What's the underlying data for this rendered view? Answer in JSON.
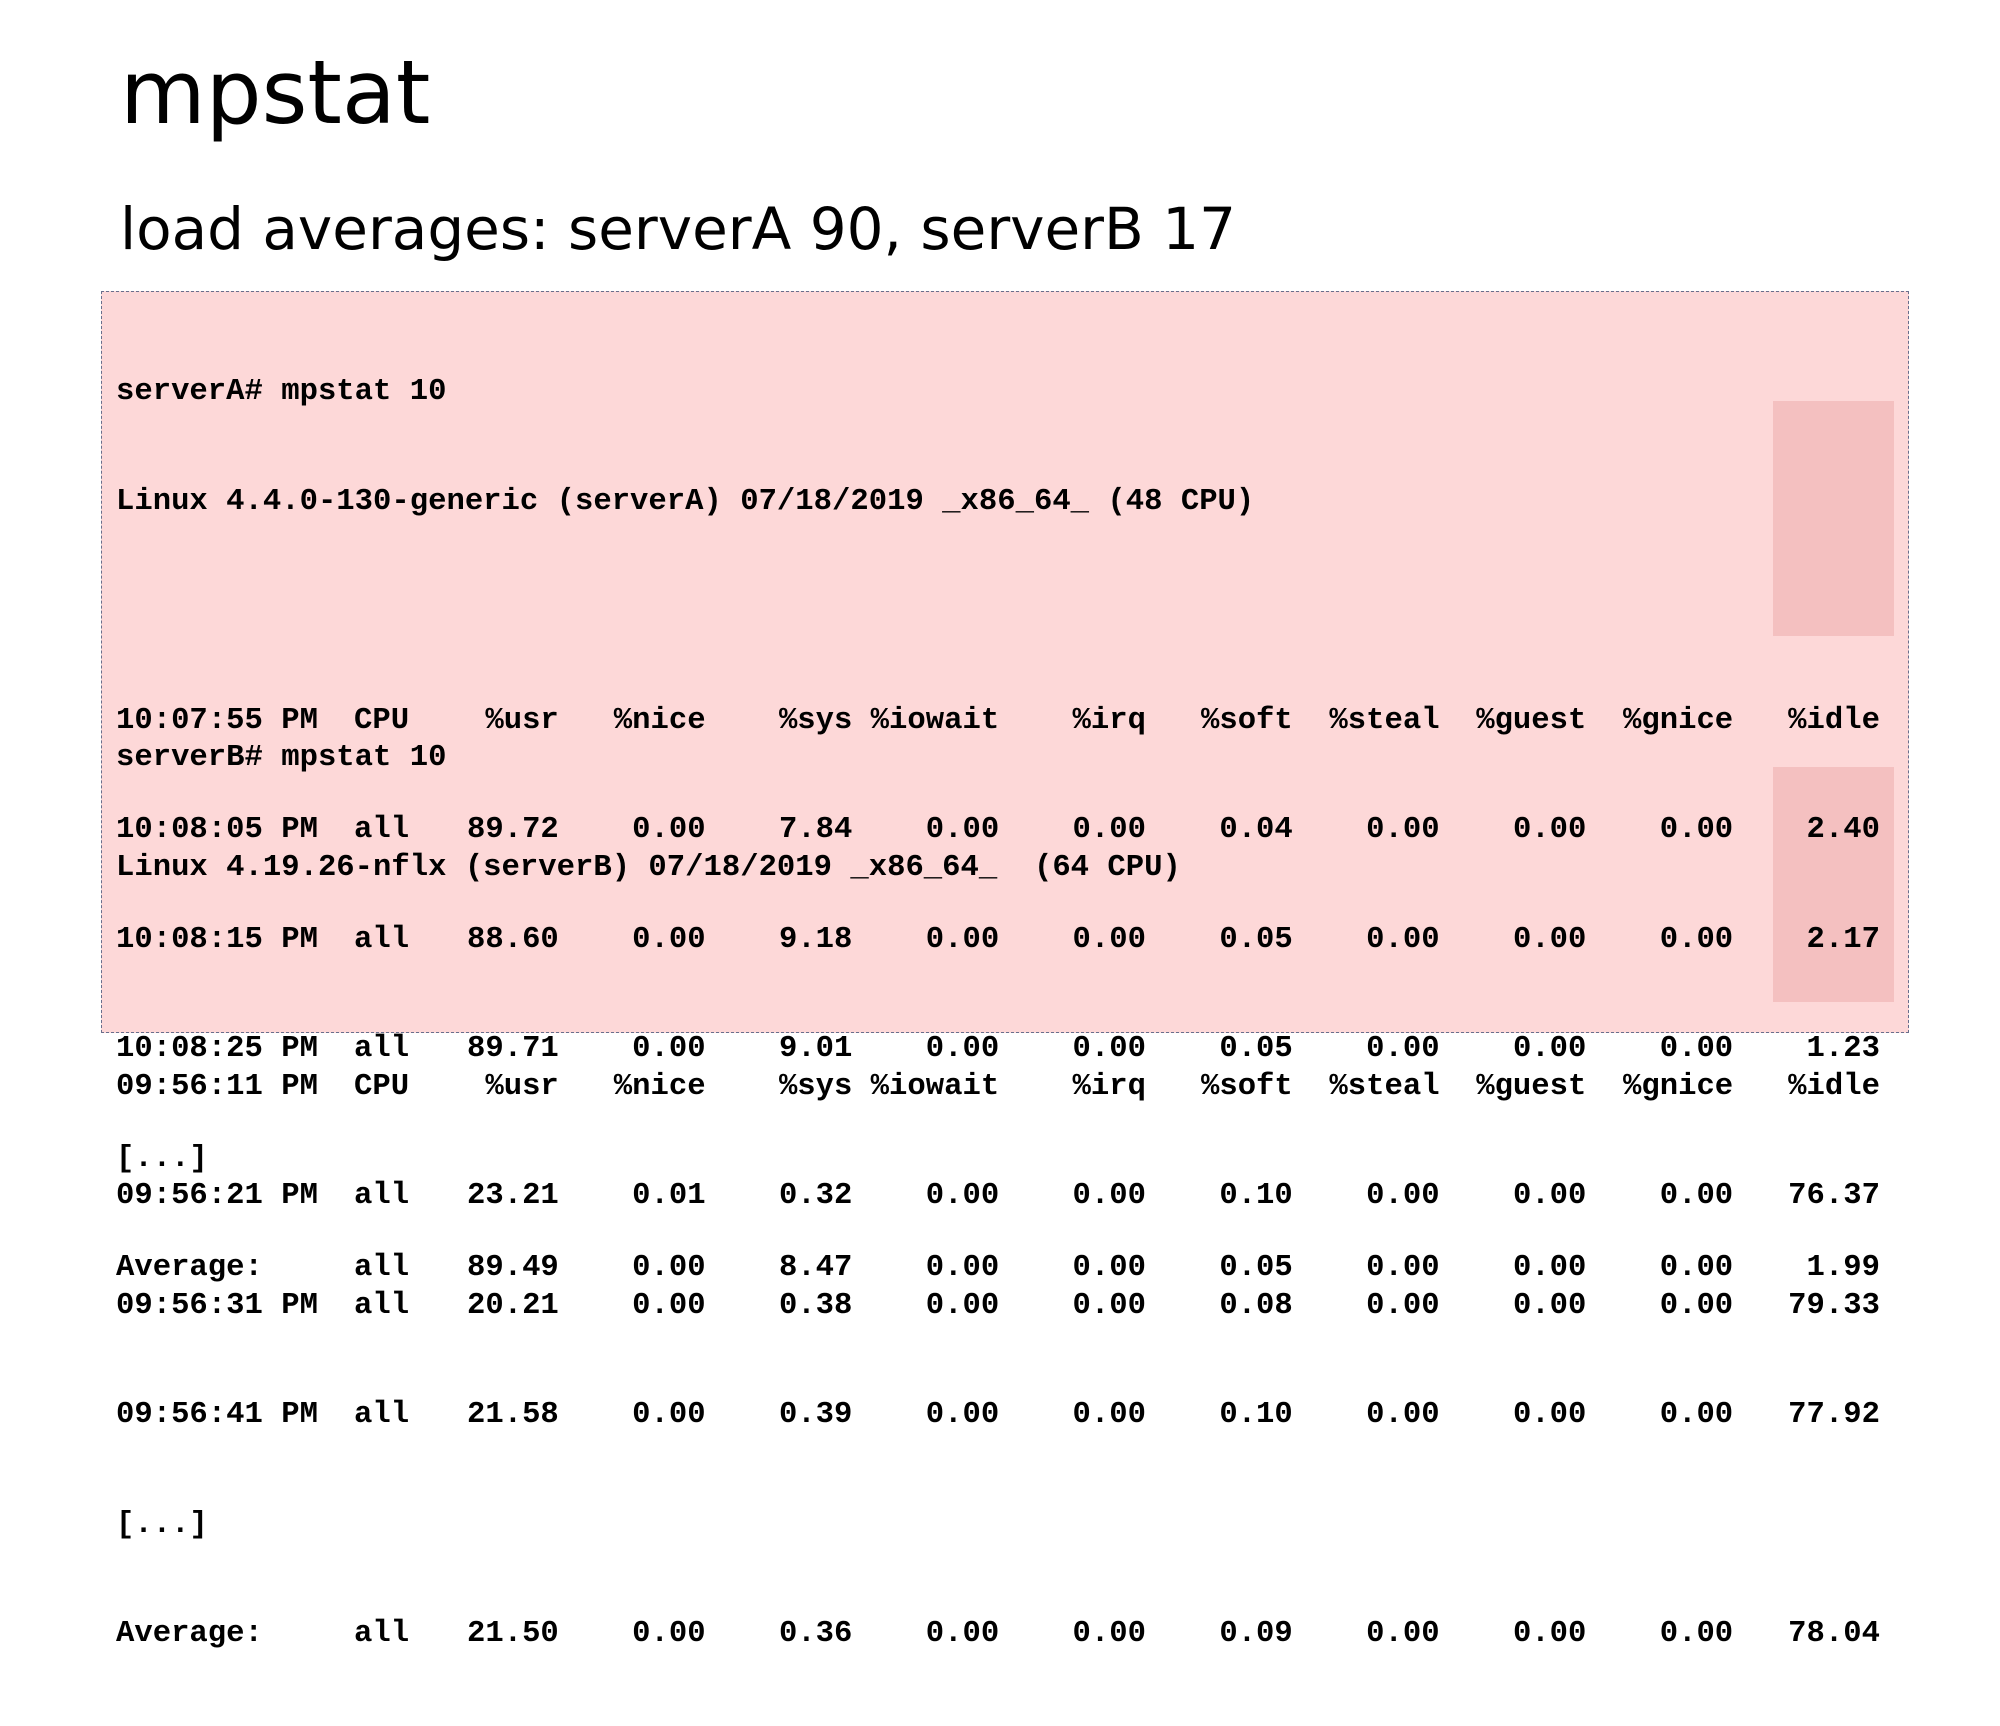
{
  "title": "mpstat",
  "subtitle": "load averages: serverA 90, serverB 17",
  "server_a": {
    "command": "serverA# mpstat 10",
    "sysinfo": "Linux 4.4.0-130-generic (serverA) 07/18/2019 _x86_64_ (48 CPU)",
    "header": [
      "10:07:55 PM",
      "CPU",
      "%usr",
      "%nice",
      "%sys",
      "%iowait",
      "%irq",
      "%soft",
      "%steal",
      "%guest",
      "%gnice",
      "%idle"
    ],
    "rows": [
      [
        "10:08:05 PM",
        "all",
        "89.72",
        "0.00",
        "7.84",
        "0.00",
        "0.00",
        "0.04",
        "0.00",
        "0.00",
        "0.00",
        "2.40"
      ],
      [
        "10:08:15 PM",
        "all",
        "88.60",
        "0.00",
        "9.18",
        "0.00",
        "0.00",
        "0.05",
        "0.00",
        "0.00",
        "0.00",
        "2.17"
      ],
      [
        "10:08:25 PM",
        "all",
        "89.71",
        "0.00",
        "9.01",
        "0.00",
        "0.00",
        "0.05",
        "0.00",
        "0.00",
        "0.00",
        "1.23"
      ]
    ],
    "ellipsis": "[...]",
    "average": [
      "Average:",
      "all",
      "89.49",
      "0.00",
      "8.47",
      "0.00",
      "0.00",
      "0.05",
      "0.00",
      "0.00",
      "0.00",
      "1.99"
    ]
  },
  "server_b": {
    "command": "serverB# mpstat 10",
    "sysinfo": "Linux 4.19.26-nflx (serverB) 07/18/2019 _x86_64_  (64 CPU)",
    "header": [
      "09:56:11 PM",
      "CPU",
      "%usr",
      "%nice",
      "%sys",
      "%iowait",
      "%irq",
      "%soft",
      "%steal",
      "%guest",
      "%gnice",
      "%idle"
    ],
    "rows": [
      [
        "09:56:21 PM",
        "all",
        "23.21",
        "0.01",
        "0.32",
        "0.00",
        "0.00",
        "0.10",
        "0.00",
        "0.00",
        "0.00",
        "76.37"
      ],
      [
        "09:56:31 PM",
        "all",
        "20.21",
        "0.00",
        "0.38",
        "0.00",
        "0.00",
        "0.08",
        "0.00",
        "0.00",
        "0.00",
        "79.33"
      ],
      [
        "09:56:41 PM",
        "all",
        "21.58",
        "0.00",
        "0.39",
        "0.00",
        "0.00",
        "0.10",
        "0.00",
        "0.00",
        "0.00",
        "77.92"
      ]
    ],
    "ellipsis": "[...]",
    "average": [
      "Average:",
      "all",
      "21.50",
      "0.00",
      "0.36",
      "0.00",
      "0.00",
      "0.09",
      "0.00",
      "0.00",
      "0.00",
      "78.04"
    ]
  },
  "colors": {
    "box_background": "#fdd8d8",
    "idle_highlight": "#f4c0c0",
    "box_border": "#6a6f8c"
  }
}
